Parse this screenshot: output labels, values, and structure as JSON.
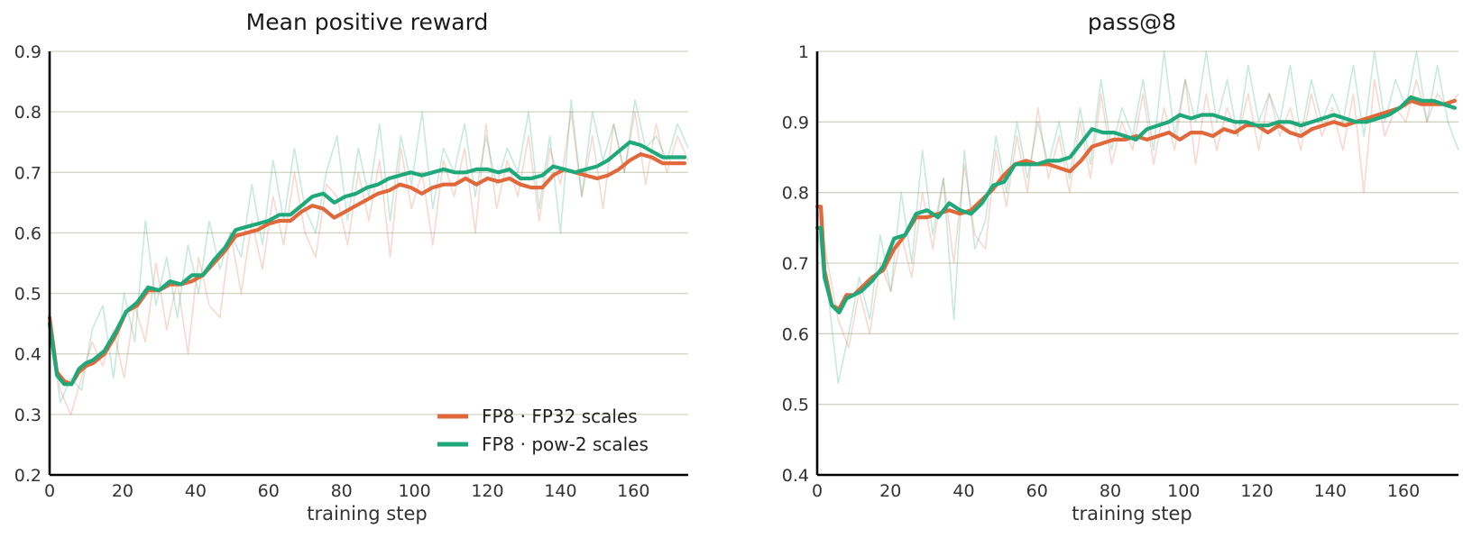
{
  "colors": {
    "fp32": "#e0683b",
    "pow2": "#1fa87a",
    "grid": "#d3d3c3",
    "axis": "#000000"
  },
  "legend": {
    "placement": "lower-right",
    "entries": [
      "FP8 · FP32 scales",
      "FP8 · pow-2 scales"
    ]
  },
  "chart_data": [
    {
      "type": "line",
      "title": "Mean positive reward",
      "xlabel": "training step",
      "ylabel": "",
      "xlim": [
        0,
        175
      ],
      "ylim": [
        0.2,
        0.9
      ],
      "xticks": [
        0,
        20,
        40,
        60,
        80,
        100,
        120,
        140,
        160
      ],
      "yticks": [
        0.2,
        0.3,
        0.4,
        0.5,
        0.6,
        0.7,
        0.8,
        0.9
      ],
      "grid": "horizontal",
      "legend": true,
      "series": [
        {
          "name": "FP8 · FP32 scales",
          "x": [
            0,
            2,
            4,
            6,
            8,
            10,
            12,
            15,
            18,
            21,
            24,
            27,
            30,
            33,
            36,
            39,
            42,
            45,
            48,
            51,
            54,
            57,
            60,
            63,
            66,
            69,
            72,
            75,
            78,
            81,
            84,
            87,
            90,
            93,
            96,
            99,
            102,
            105,
            108,
            111,
            114,
            117,
            120,
            123,
            126,
            129,
            132,
            135,
            138,
            141,
            144,
            147,
            150,
            153,
            156,
            159,
            162,
            165,
            168,
            171,
            174
          ],
          "values": [
            0.46,
            0.37,
            0.355,
            0.35,
            0.37,
            0.38,
            0.385,
            0.4,
            0.43,
            0.47,
            0.48,
            0.505,
            0.505,
            0.515,
            0.515,
            0.52,
            0.53,
            0.55,
            0.57,
            0.595,
            0.6,
            0.605,
            0.615,
            0.62,
            0.62,
            0.635,
            0.645,
            0.64,
            0.625,
            0.635,
            0.645,
            0.655,
            0.665,
            0.67,
            0.68,
            0.675,
            0.665,
            0.675,
            0.68,
            0.68,
            0.69,
            0.68,
            0.69,
            0.685,
            0.69,
            0.68,
            0.675,
            0.675,
            0.695,
            0.705,
            0.7,
            0.695,
            0.69,
            0.695,
            0.705,
            0.72,
            0.73,
            0.725,
            0.715,
            0.715,
            0.715
          ],
          "raw": [
            0.46,
            0.34,
            0.3,
            0.36,
            0.42,
            0.38,
            0.44,
            0.36,
            0.48,
            0.42,
            0.55,
            0.44,
            0.52,
            0.4,
            0.56,
            0.48,
            0.46,
            0.6,
            0.5,
            0.62,
            0.54,
            0.66,
            0.58,
            0.7,
            0.6,
            0.56,
            0.68,
            0.66,
            0.58,
            0.7,
            0.62,
            0.72,
            0.56,
            0.74,
            0.64,
            0.7,
            0.58,
            0.72,
            0.66,
            0.74,
            0.6,
            0.78,
            0.64,
            0.72,
            0.66,
            0.76,
            0.62,
            0.74,
            0.68,
            0.8,
            0.66,
            0.76,
            0.64,
            0.78,
            0.7,
            0.8,
            0.68,
            0.78,
            0.7,
            0.76,
            0.72
          ]
        },
        {
          "name": "FP8 · pow-2 scales",
          "x": [
            0,
            2,
            4,
            6,
            8,
            10,
            12,
            15,
            18,
            21,
            24,
            27,
            30,
            33,
            36,
            39,
            42,
            45,
            48,
            51,
            54,
            57,
            60,
            63,
            66,
            69,
            72,
            75,
            78,
            81,
            84,
            87,
            90,
            93,
            96,
            99,
            102,
            105,
            108,
            111,
            114,
            117,
            120,
            123,
            126,
            129,
            132,
            135,
            138,
            141,
            144,
            147,
            150,
            153,
            156,
            159,
            162,
            165,
            168,
            171,
            174
          ],
          "values": [
            0.45,
            0.365,
            0.35,
            0.35,
            0.375,
            0.385,
            0.39,
            0.405,
            0.435,
            0.47,
            0.485,
            0.51,
            0.505,
            0.52,
            0.515,
            0.53,
            0.53,
            0.555,
            0.575,
            0.605,
            0.61,
            0.615,
            0.62,
            0.63,
            0.63,
            0.645,
            0.66,
            0.665,
            0.65,
            0.66,
            0.665,
            0.675,
            0.68,
            0.69,
            0.695,
            0.7,
            0.695,
            0.7,
            0.705,
            0.7,
            0.7,
            0.705,
            0.705,
            0.7,
            0.705,
            0.69,
            0.69,
            0.695,
            0.71,
            0.705,
            0.7,
            0.705,
            0.71,
            0.72,
            0.735,
            0.75,
            0.745,
            0.735,
            0.725,
            0.725,
            0.725
          ],
          "raw": [
            0.45,
            0.32,
            0.36,
            0.34,
            0.44,
            0.48,
            0.36,
            0.5,
            0.42,
            0.62,
            0.48,
            0.56,
            0.46,
            0.58,
            0.5,
            0.62,
            0.54,
            0.6,
            0.56,
            0.68,
            0.58,
            0.72,
            0.62,
            0.74,
            0.64,
            0.6,
            0.7,
            0.76,
            0.62,
            0.74,
            0.66,
            0.78,
            0.62,
            0.76,
            0.68,
            0.8,
            0.64,
            0.74,
            0.7,
            0.78,
            0.66,
            0.76,
            0.68,
            0.74,
            0.7,
            0.8,
            0.64,
            0.76,
            0.6,
            0.82,
            0.66,
            0.8,
            0.72,
            0.78,
            0.7,
            0.82,
            0.74,
            0.76,
            0.72,
            0.78,
            0.74
          ]
        }
      ]
    },
    {
      "type": "line",
      "title": "pass@8",
      "xlabel": "training step",
      "ylabel": "",
      "xlim": [
        0,
        175
      ],
      "ylim": [
        0.4,
        1.0
      ],
      "xticks": [
        0,
        20,
        40,
        60,
        80,
        100,
        120,
        140,
        160
      ],
      "yticks": [
        0.4,
        0.5,
        0.6,
        0.7,
        0.8,
        0.9,
        1.0
      ],
      "grid": "horizontal",
      "legend": false,
      "series": [
        {
          "name": "FP8 · FP32 scales",
          "x": [
            0,
            1,
            2,
            4,
            6,
            8,
            10,
            12,
            15,
            18,
            21,
            24,
            27,
            30,
            33,
            36,
            39,
            42,
            45,
            48,
            51,
            54,
            57,
            60,
            63,
            66,
            69,
            72,
            75,
            78,
            81,
            84,
            87,
            90,
            93,
            96,
            99,
            102,
            105,
            108,
            111,
            114,
            117,
            120,
            123,
            126,
            129,
            132,
            135,
            138,
            141,
            144,
            147,
            150,
            153,
            156,
            159,
            162,
            165,
            168,
            171,
            174
          ],
          "values": [
            0.78,
            0.78,
            0.69,
            0.64,
            0.635,
            0.655,
            0.655,
            0.665,
            0.68,
            0.69,
            0.72,
            0.74,
            0.765,
            0.765,
            0.77,
            0.775,
            0.77,
            0.775,
            0.79,
            0.805,
            0.825,
            0.84,
            0.845,
            0.84,
            0.84,
            0.835,
            0.83,
            0.845,
            0.865,
            0.87,
            0.875,
            0.875,
            0.88,
            0.875,
            0.88,
            0.885,
            0.875,
            0.885,
            0.885,
            0.88,
            0.89,
            0.885,
            0.895,
            0.895,
            0.885,
            0.895,
            0.885,
            0.88,
            0.89,
            0.895,
            0.9,
            0.895,
            0.9,
            0.905,
            0.91,
            0.915,
            0.92,
            0.93,
            0.925,
            0.925,
            0.925,
            0.93
          ],
          "raw": [
            0.78,
            0.7,
            0.62,
            0.58,
            0.66,
            0.6,
            0.7,
            0.66,
            0.74,
            0.68,
            0.8,
            0.72,
            0.82,
            0.7,
            0.84,
            0.74,
            0.72,
            0.86,
            0.78,
            0.88,
            0.8,
            0.92,
            0.82,
            0.88,
            0.8,
            0.9,
            0.82,
            0.94,
            0.84,
            0.9,
            0.86,
            0.94,
            0.84,
            0.92,
            0.86,
            0.96,
            0.84,
            0.94,
            0.86,
            0.92,
            0.88,
            0.94,
            0.86,
            0.94,
            0.88,
            0.92,
            0.86,
            0.94,
            0.88,
            0.92,
            0.86,
            0.94,
            0.8,
            0.96,
            0.88,
            0.92,
            0.9,
            0.96,
            0.9,
            0.94,
            0.92,
            0.94
          ]
        },
        {
          "name": "FP8 · pow-2 scales",
          "x": [
            0,
            1,
            2,
            4,
            6,
            8,
            10,
            12,
            15,
            18,
            21,
            24,
            27,
            30,
            33,
            36,
            39,
            42,
            45,
            48,
            51,
            54,
            57,
            60,
            63,
            66,
            69,
            72,
            75,
            78,
            81,
            84,
            87,
            90,
            93,
            96,
            99,
            102,
            105,
            108,
            111,
            114,
            117,
            120,
            123,
            126,
            129,
            132,
            135,
            138,
            141,
            144,
            147,
            150,
            153,
            156,
            159,
            162,
            165,
            168,
            171,
            174
          ],
          "values": [
            0.75,
            0.75,
            0.68,
            0.64,
            0.63,
            0.65,
            0.655,
            0.66,
            0.675,
            0.695,
            0.735,
            0.74,
            0.77,
            0.775,
            0.765,
            0.785,
            0.775,
            0.77,
            0.785,
            0.81,
            0.815,
            0.84,
            0.84,
            0.84,
            0.845,
            0.845,
            0.85,
            0.87,
            0.89,
            0.885,
            0.885,
            0.88,
            0.875,
            0.89,
            0.895,
            0.9,
            0.91,
            0.905,
            0.91,
            0.91,
            0.905,
            0.9,
            0.9,
            0.895,
            0.895,
            0.9,
            0.9,
            0.895,
            0.9,
            0.905,
            0.91,
            0.905,
            0.9,
            0.9,
            0.905,
            0.91,
            0.92,
            0.935,
            0.93,
            0.93,
            0.925,
            0.92
          ],
          "raw": [
            0.75,
            0.66,
            0.53,
            0.6,
            0.68,
            0.62,
            0.74,
            0.66,
            0.8,
            0.7,
            0.86,
            0.74,
            0.82,
            0.62,
            0.86,
            0.72,
            0.76,
            0.88,
            0.8,
            0.9,
            0.82,
            0.9,
            0.84,
            0.9,
            0.82,
            0.92,
            0.84,
            0.96,
            0.86,
            0.92,
            0.88,
            0.96,
            0.86,
            1.0,
            0.88,
            0.96,
            0.9,
            1.0,
            0.9,
            0.96,
            0.88,
            0.98,
            0.9,
            0.94,
            0.9,
            0.98,
            0.88,
            0.96,
            0.9,
            0.94,
            0.9,
            0.98,
            0.88,
            1.0,
            0.9,
            0.96,
            0.92,
            1.0,
            0.9,
            0.98,
            0.9,
            0.86
          ]
        }
      ]
    }
  ]
}
